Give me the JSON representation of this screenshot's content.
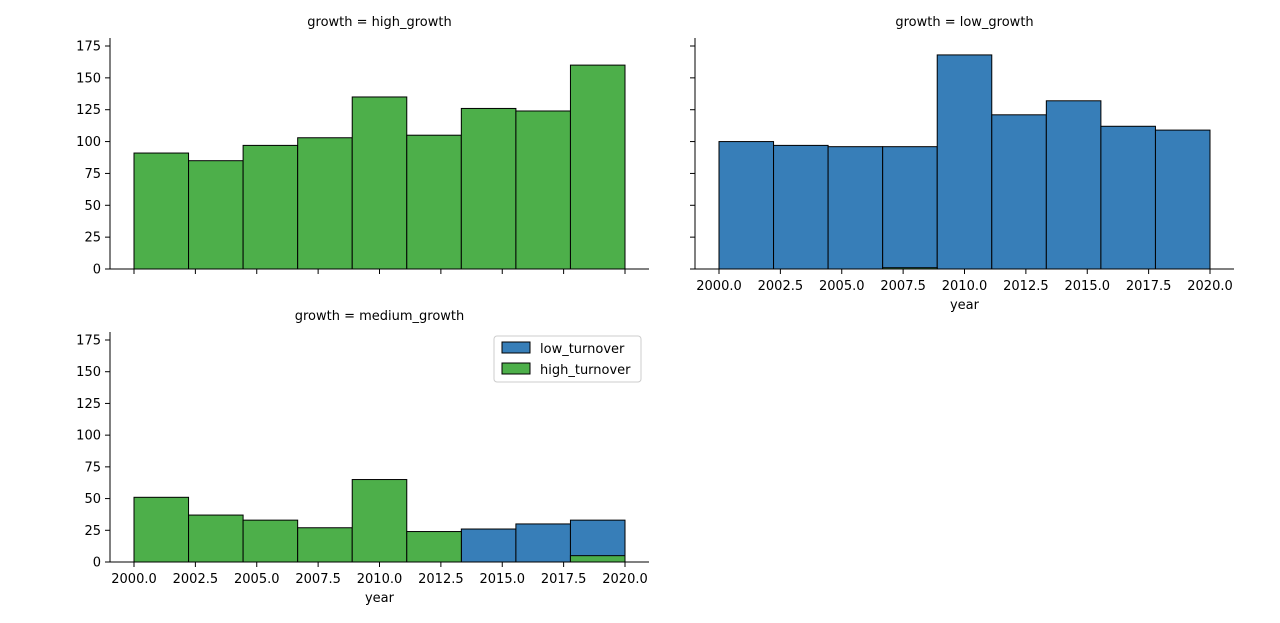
{
  "chart_data": {
    "type": "bar",
    "facet_var": "growth",
    "xlabel": "year",
    "ylabel": "",
    "ylim": [
      0,
      175
    ],
    "xlim": [
      2000,
      2020
    ],
    "yticks": [
      0,
      25,
      50,
      75,
      100,
      125,
      150,
      175
    ],
    "xticks": [
      2000.0,
      2002.5,
      2005.0,
      2007.5,
      2010.0,
      2012.5,
      2015.0,
      2017.5,
      2020.0
    ],
    "xtick_labels": [
      "2000.0",
      "2002.5",
      "2005.0",
      "2007.5",
      "2010.0",
      "2012.5",
      "2015.0",
      "2017.5",
      "2020.0"
    ],
    "ytick_labels": [
      "0",
      "25",
      "50",
      "75",
      "100",
      "125",
      "150",
      "175"
    ],
    "bin_edges": [
      2000.0,
      2002.222,
      2004.444,
      2006.667,
      2008.889,
      2011.111,
      2013.333,
      2015.556,
      2017.778,
      2020.0
    ],
    "legend": {
      "position": "upper right of medium_growth panel",
      "entries": [
        {
          "label": "low_turnover",
          "color": "#377eb8"
        },
        {
          "label": "high_turnover",
          "color": "#4daf4a"
        }
      ]
    },
    "panels": [
      {
        "title": "growth = high_growth",
        "series": [
          {
            "name": "low_turnover",
            "color": "#377eb8",
            "values": [
              0,
              0,
              0,
              0,
              0,
              0,
              0,
              0,
              0
            ]
          },
          {
            "name": "high_turnover",
            "color": "#4daf4a",
            "values": [
              91,
              85,
              97,
              103,
              135,
              105,
              126,
              124,
              160
            ]
          }
        ]
      },
      {
        "title": "growth = low_growth",
        "series": [
          {
            "name": "low_turnover",
            "color": "#377eb8",
            "values": [
              100,
              97,
              96,
              96,
              168,
              121,
              132,
              112,
              109
            ]
          },
          {
            "name": "high_turnover",
            "color": "#4daf4a",
            "values": [
              0,
              0,
              0,
              1,
              0,
              0,
              0,
              0,
              0
            ]
          }
        ]
      },
      {
        "title": "growth = medium_growth",
        "series": [
          {
            "name": "low_turnover",
            "color": "#377eb8",
            "values": [
              0,
              0,
              0,
              0,
              0,
              0,
              26,
              30,
              33
            ]
          },
          {
            "name": "high_turnover",
            "color": "#4daf4a",
            "values": [
              51,
              37,
              33,
              27,
              65,
              24,
              0,
              0,
              5
            ]
          }
        ]
      }
    ]
  }
}
